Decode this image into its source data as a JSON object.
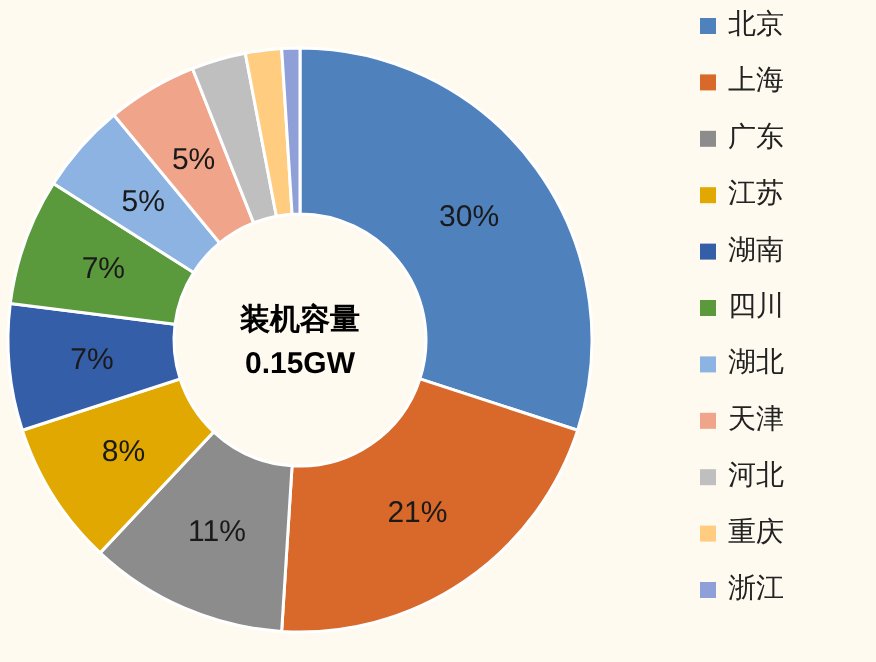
{
  "chart_data": {
    "type": "donut",
    "categories": [
      "北京",
      "上海",
      "广东",
      "江苏",
      "湖南",
      "四川",
      "湖北",
      "天津",
      "河北",
      "重庆",
      "浙江"
    ],
    "values": [
      30,
      21,
      11,
      8,
      7,
      7,
      5,
      5,
      3,
      2,
      1
    ],
    "value_labels": [
      "30%",
      "21%",
      "11%",
      "8%",
      "7%",
      "7%",
      "5%",
      "5%",
      null,
      null,
      null
    ],
    "colors": [
      "#4f81bd",
      "#d8692a",
      "#8c8c8c",
      "#e0a800",
      "#355ea8",
      "#5b9a3c",
      "#8db3e2",
      "#f0a48a",
      "#bfbfbf",
      "#ffcc80",
      "#8fa0d8"
    ],
    "annotations": [
      "装机容量",
      "0.15GW"
    ],
    "legend": "right"
  }
}
